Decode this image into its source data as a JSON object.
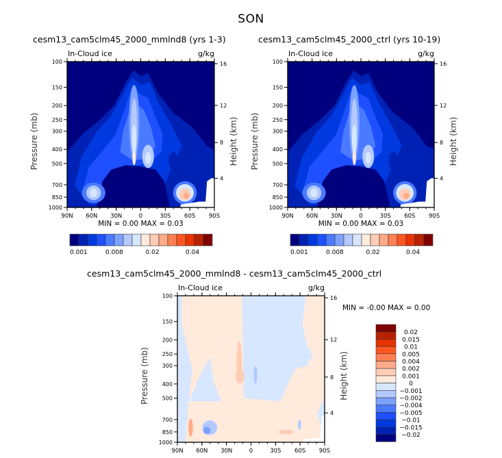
{
  "title": "SON",
  "chart_data": [
    {
      "id": "panel-a",
      "type": "heatmap",
      "subtitle": "cesm13_cam5clm45_2000_mmlnd8 (yrs 1-3)",
      "variable_label": "In-Cloud ice",
      "units": "g/kg",
      "xlabel": "",
      "ylabel": "Pressure (mb)",
      "y2label": "Height (km)",
      "xticks": [
        "90N",
        "60N",
        "30N",
        "0",
        "30S",
        "60S",
        "90S"
      ],
      "yticks": [
        100,
        150,
        200,
        250,
        300,
        400,
        500,
        700,
        850,
        1000
      ],
      "y2ticks": [
        4,
        8,
        12,
        16
      ],
      "ylim": [
        1000,
        100
      ],
      "minmax_text": "MIN =     0.00   MAX =     0.03",
      "min": 0.0,
      "max": 0.03,
      "colorbar": {
        "orientation": "horizontal",
        "tick_labels": [
          "0.001",
          "0.008",
          "0.02",
          "0.04"
        ],
        "colors": [
          "#00007f",
          "#0022b4",
          "#0039e0",
          "#1e50ff",
          "#4a7aff",
          "#7da1ff",
          "#b3c9ff",
          "#d7e7ff",
          "#ffeadb",
          "#ffccb5",
          "#ffaa88",
          "#ff8055",
          "#ff5520",
          "#e63300",
          "#b82200",
          "#7f0000"
        ]
      }
    },
    {
      "id": "panel-b",
      "type": "heatmap",
      "subtitle": "cesm13_cam5clm45_2000_ctrl (yrs 10-19)",
      "variable_label": "In-Cloud ice",
      "units": "g/kg",
      "xlabel": "",
      "ylabel": "Pressure (mb)",
      "y2label": "Height (km)",
      "xticks": [
        "90N",
        "60N",
        "30N",
        "0",
        "30S",
        "60S",
        "90S"
      ],
      "yticks": [
        100,
        150,
        200,
        250,
        300,
        400,
        500,
        700,
        850,
        1000
      ],
      "y2ticks": [
        4,
        8,
        12,
        16
      ],
      "ylim": [
        1000,
        100
      ],
      "minmax_text": "MIN =     0.00   MAX =     0.03",
      "min": 0.0,
      "max": 0.03,
      "colorbar": {
        "orientation": "horizontal",
        "tick_labels": [
          "0.001",
          "0.008",
          "0.02",
          "0.04"
        ],
        "colors": [
          "#00007f",
          "#0022b4",
          "#0039e0",
          "#1e50ff",
          "#4a7aff",
          "#7da1ff",
          "#b3c9ff",
          "#d7e7ff",
          "#ffeadb",
          "#ffccb5",
          "#ffaa88",
          "#ff8055",
          "#ff5520",
          "#e63300",
          "#b82200",
          "#7f0000"
        ]
      }
    },
    {
      "id": "panel-diff",
      "type": "heatmap",
      "subtitle": "cesm13_cam5clm45_2000_mmlnd8 - cesm13_cam5clm45_2000_ctrl",
      "variable_label": "In-Cloud ice",
      "units": "g/kg",
      "xlabel": "",
      "ylabel": "Pressure (mb)",
      "y2label": "Height (km)",
      "xticks": [
        "90N",
        "60N",
        "30N",
        "0",
        "30S",
        "60S",
        "90S"
      ],
      "yticks": [
        100,
        150,
        200,
        250,
        300,
        400,
        500,
        700,
        850,
        1000
      ],
      "y2ticks": [
        4,
        8,
        12,
        16
      ],
      "ylim": [
        1000,
        100
      ],
      "minmax_text": "MIN =   -0.00   MAX =     0.00",
      "min": -0.0,
      "max": 0.0,
      "colorbar": {
        "orientation": "vertical",
        "tick_labels": [
          "0.02",
          "0.015",
          "0.01",
          "0.005",
          "0.004",
          "0.002",
          "0.001",
          "0",
          "-0.001",
          "-0.002",
          "-0.004",
          "-0.005",
          "-0.01",
          "-0.015",
          "-0.02"
        ],
        "colors": [
          "#7f0000",
          "#b82200",
          "#e63300",
          "#ff5520",
          "#ff8055",
          "#ffaa88",
          "#ffccb5",
          "#ffeadb",
          "#d7e7ff",
          "#b3c9ff",
          "#7da1ff",
          "#4a7aff",
          "#1e50ff",
          "#0039e0",
          "#0022b4",
          "#00007f"
        ]
      }
    }
  ]
}
